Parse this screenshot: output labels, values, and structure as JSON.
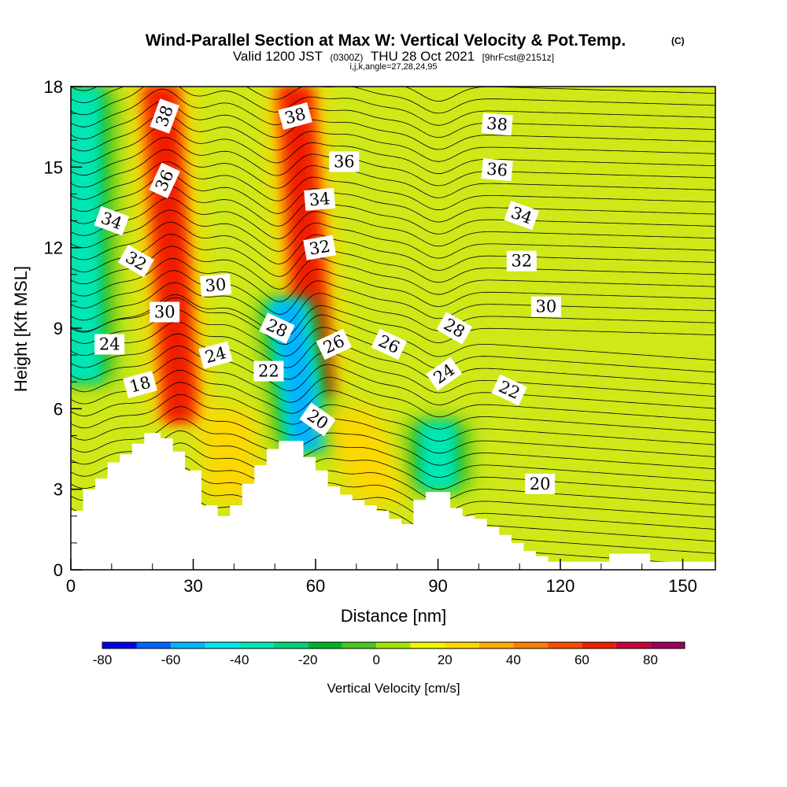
{
  "chart_data": {
    "type": "heatmap",
    "title": "Wind-Parallel Section at Max W: Vertical Velocity & Pot.Temp.",
    "title_mark": "(C)",
    "subtitle": {
      "valid_label": "Valid 1200 JST",
      "utc": "(0300Z)",
      "date": "THU 28 Oct 2021",
      "forecast": "[9hrFcst@2151z]"
    },
    "indices_line": "i,j,k,angle=27,28,24,95",
    "xlabel": "Distance [nm]",
    "ylabel": "Height [Kft MSL]",
    "x_ticks": [
      "0",
      "30",
      "60",
      "90",
      "120",
      "150"
    ],
    "y_ticks": [
      "0",
      "3",
      "6",
      "9",
      "12",
      "15",
      "18"
    ],
    "xlim": [
      0,
      158
    ],
    "ylim": [
      0,
      18
    ],
    "grid": false,
    "colorbar": {
      "label": "Vertical Velocity [cm/s]",
      "tick_labels": [
        "-80",
        "-60",
        "-40",
        "-20",
        "0",
        "20",
        "40",
        "60",
        "80"
      ],
      "levels": [
        -80,
        -70,
        -60,
        -50,
        -40,
        -30,
        -20,
        -10,
        0,
        10,
        20,
        30,
        40,
        50,
        60,
        70,
        80,
        90
      ],
      "colors": [
        "#0000e6",
        "#0064ff",
        "#00b4ff",
        "#00e6f0",
        "#00e6b4",
        "#00d278",
        "#00b428",
        "#46c81e",
        "#a0e600",
        "#f0f500",
        "#ffd700",
        "#ffaa00",
        "#ff7d00",
        "#ff4b00",
        "#f01e00",
        "#c8003c",
        "#9b005a",
        "#640082"
      ]
    },
    "terrain": {
      "x": [
        0,
        3,
        3,
        6,
        6,
        9,
        9,
        12,
        12,
        15,
        15,
        18,
        18,
        22,
        22,
        25,
        25,
        28,
        28,
        32,
        32,
        36,
        36,
        39,
        39,
        42,
        42,
        45,
        45,
        48,
        48,
        51,
        51,
        54,
        54,
        57,
        57,
        60,
        60,
        63,
        63,
        66,
        66,
        69,
        69,
        72,
        72,
        75,
        75,
        78,
        78,
        81,
        81,
        84,
        84,
        87,
        87,
        90,
        90,
        93,
        93,
        96,
        96,
        99,
        99,
        102,
        102,
        105,
        105,
        108,
        108,
        111,
        111,
        114,
        114,
        117,
        117,
        120,
        120,
        132,
        132,
        142,
        142,
        145,
        145,
        158
      ],
      "height": [
        2.2,
        2.2,
        3.0,
        3.0,
        3.4,
        3.4,
        4.0,
        4.0,
        4.3,
        4.3,
        4.7,
        4.7,
        5.1,
        5.1,
        4.9,
        4.9,
        4.4,
        4.4,
        3.7,
        3.7,
        2.4,
        2.4,
        2.0,
        2.0,
        2.4,
        2.4,
        3.2,
        3.2,
        3.9,
        3.9,
        4.5,
        4.5,
        4.8,
        4.8,
        4.8,
        4.8,
        4.2,
        4.2,
        3.7,
        3.7,
        3.1,
        3.1,
        2.8,
        2.8,
        2.6,
        2.6,
        2.4,
        2.4,
        2.2,
        2.2,
        1.9,
        1.9,
        1.7,
        1.7,
        2.6,
        2.6,
        2.9,
        2.9,
        2.9,
        2.9,
        2.3,
        2.3,
        2.0,
        2.0,
        1.9,
        1.9,
        1.6,
        1.6,
        1.3,
        1.3,
        1.0,
        1.0,
        0.7,
        0.7,
        0.5,
        0.5,
        0.3,
        0.3,
        0.3,
        0.3,
        0.6,
        0.6,
        0.3,
        0.3,
        0.3,
        0.3
      ]
    },
    "velocity_cores": [
      {
        "type": "updraft",
        "x_bottom": 27,
        "y_bottom": 5.5,
        "x_top": 22,
        "y_top": 18,
        "peak_cm_s": 60
      },
      {
        "type": "updraft",
        "x_bottom": 60,
        "y_bottom": 6.5,
        "x_top": 55,
        "y_top": 18,
        "peak_cm_s": 60
      },
      {
        "type": "downdraft",
        "x_bottom": 58,
        "y_bottom": 4.5,
        "x_top": 53,
        "y_top": 10,
        "peak_cm_s": -60
      },
      {
        "type": "downdraft",
        "x_bottom": 3,
        "y_bottom": 7,
        "x_top": 3,
        "y_top": 18,
        "peak_cm_s": -40
      },
      {
        "type": "downdraft",
        "x_bottom": 90,
        "y_bottom": 3,
        "x_top": 90,
        "y_top": 5.5,
        "peak_cm_s": -40
      },
      {
        "type": "updraft",
        "x_bottom": 40,
        "y_bottom": 2.5,
        "x_top": 38,
        "y_top": 6,
        "peak_cm_s": 30
      },
      {
        "type": "updraft",
        "x_bottom": 76,
        "y_bottom": 2.5,
        "x_top": 68,
        "y_top": 6,
        "peak_cm_s": 20
      }
    ],
    "contour_labels": [
      {
        "text": "38",
        "x": 23,
        "y": 16.9,
        "angle": -70
      },
      {
        "text": "38",
        "x": 55,
        "y": 16.9,
        "angle": -15
      },
      {
        "text": "38",
        "x": 104.5,
        "y": 16.6,
        "angle": 5
      },
      {
        "text": "36",
        "x": 67,
        "y": 15.2,
        "angle": 0
      },
      {
        "text": "36",
        "x": 104.5,
        "y": 14.9,
        "angle": 5
      },
      {
        "text": "36",
        "x": 23,
        "y": 14.5,
        "angle": -65
      },
      {
        "text": "34",
        "x": 61,
        "y": 13.8,
        "angle": -5
      },
      {
        "text": "34",
        "x": 10,
        "y": 13.0,
        "angle": 20
      },
      {
        "text": "34",
        "x": 110.5,
        "y": 13.2,
        "angle": 20
      },
      {
        "text": "32",
        "x": 61,
        "y": 12.0,
        "angle": -10
      },
      {
        "text": "32",
        "x": 16,
        "y": 11.5,
        "angle": 30
      },
      {
        "text": "32",
        "x": 110.5,
        "y": 11.5,
        "angle": 0
      },
      {
        "text": "30",
        "x": 35.5,
        "y": 10.6,
        "angle": -5
      },
      {
        "text": "30",
        "x": 23,
        "y": 9.6,
        "angle": 0
      },
      {
        "text": "30",
        "x": 116.5,
        "y": 9.8,
        "angle": 0
      },
      {
        "text": "28",
        "x": 50.5,
        "y": 9.0,
        "angle": 25
      },
      {
        "text": "28",
        "x": 94,
        "y": 9.0,
        "angle": 30
      },
      {
        "text": "26",
        "x": 64.5,
        "y": 8.4,
        "angle": -25
      },
      {
        "text": "26",
        "x": 78,
        "y": 8.4,
        "angle": 25
      },
      {
        "text": "24",
        "x": 9.5,
        "y": 8.4,
        "angle": 0
      },
      {
        "text": "24",
        "x": 35.5,
        "y": 8.0,
        "angle": -15
      },
      {
        "text": "24",
        "x": 91.5,
        "y": 7.3,
        "angle": -35
      },
      {
        "text": "22",
        "x": 48.5,
        "y": 7.4,
        "angle": 0
      },
      {
        "text": "22",
        "x": 107.5,
        "y": 6.7,
        "angle": 25
      },
      {
        "text": "18",
        "x": 17,
        "y": 6.9,
        "angle": -15
      },
      {
        "text": "20",
        "x": 60.5,
        "y": 5.6,
        "angle": 35
      },
      {
        "text": "20",
        "x": 115,
        "y": 3.2,
        "angle": 0
      }
    ]
  }
}
